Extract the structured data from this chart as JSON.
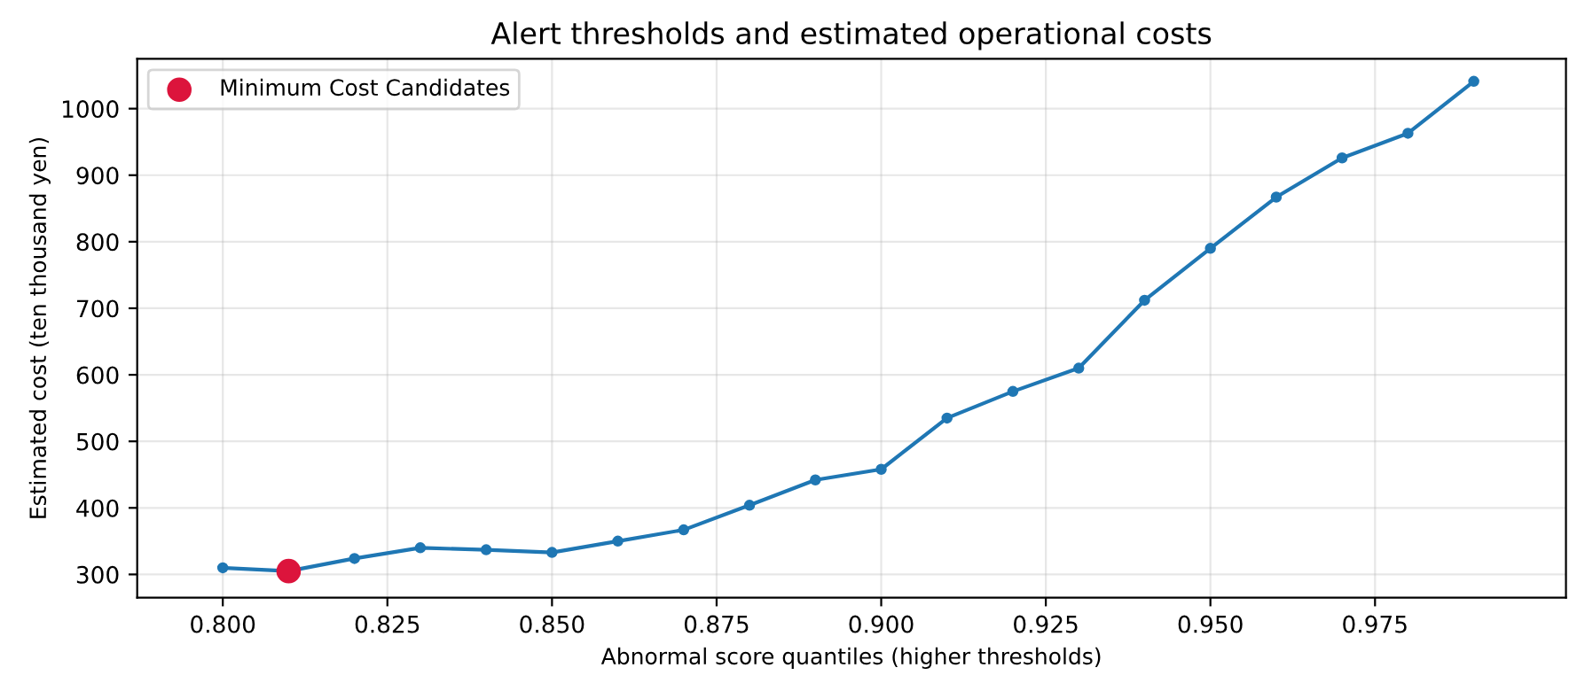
{
  "chart_data": {
    "type": "line",
    "title": "Alert thresholds and estimated operational costs",
    "xlabel": "Abnormal score quantiles (higher thresholds)",
    "ylabel": "Estimated cost (ten thousand yen)",
    "series": [
      {
        "type": "line",
        "color": "#1f77b4",
        "marker": "circle",
        "x": [
          0.8,
          0.81,
          0.82,
          0.83,
          0.84,
          0.85,
          0.86,
          0.87,
          0.88,
          0.89,
          0.9,
          0.91,
          0.92,
          0.93,
          0.94,
          0.95,
          0.96,
          0.97,
          0.98,
          0.99
        ],
        "values": [
          310,
          305,
          324,
          340,
          337,
          333,
          350,
          367,
          404,
          442,
          458,
          535,
          575,
          610,
          712,
          790,
          867,
          926,
          963,
          1041
        ]
      },
      {
        "type": "scatter",
        "name": "Minimum Cost Candidates",
        "color": "#dc143c",
        "marker": "circle",
        "x": [
          0.81
        ],
        "values": [
          305
        ]
      }
    ],
    "xlim": [
      0.787,
      1.004
    ],
    "xticks": [
      {
        "value": 0.8,
        "label": "0.800"
      },
      0.825,
      {
        "value": 0.85,
        "label": "0.850"
      },
      0.875,
      {
        "value": 0.9,
        "label": "0.900"
      },
      0.925,
      {
        "value": 0.95,
        "label": "0.950"
      },
      0.975
    ],
    "ylim": [
      265,
      1075
    ],
    "yticks": [
      300,
      400,
      500,
      600,
      700,
      800,
      900,
      1000
    ],
    "grid": true,
    "legend": "top left"
  }
}
